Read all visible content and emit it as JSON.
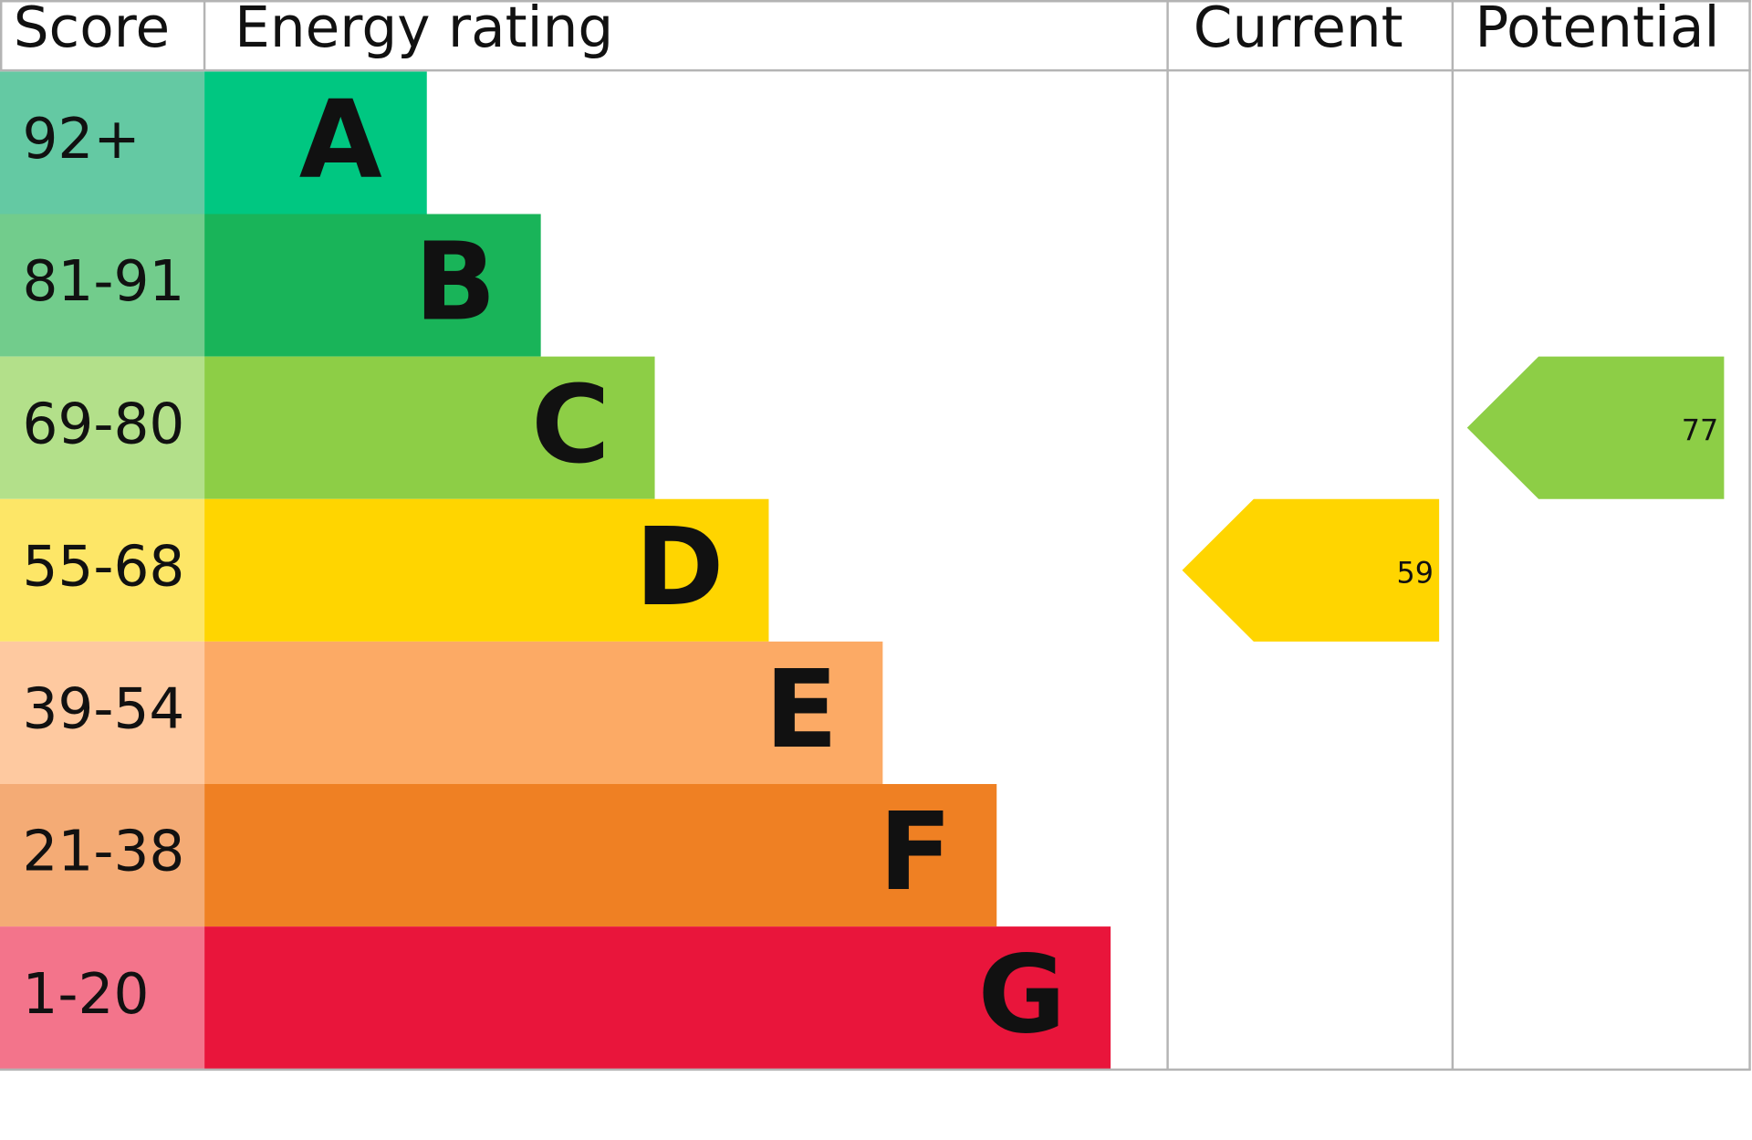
{
  "header": {
    "score": "Score",
    "rating": "Energy rating",
    "current": "Current",
    "potential": "Potential"
  },
  "bands": [
    {
      "score": "92+",
      "letter": "A",
      "score_color": "#64c9a3",
      "color": "#00c781"
    },
    {
      "score": "81-91",
      "letter": "B",
      "score_color": "#72cc8c",
      "color": "#19b459"
    },
    {
      "score": "69-80",
      "letter": "C",
      "score_color": "#b3e08a",
      "color": "#8dce46"
    },
    {
      "score": "55-68",
      "letter": "D",
      "score_color": "#fde667",
      "color": "#ffd500"
    },
    {
      "score": "39-54",
      "letter": "E",
      "score_color": "#fec9a0",
      "color": "#fcaa65"
    },
    {
      "score": "21-38",
      "letter": "F",
      "score_color": "#f4ab75",
      "color": "#ef8023"
    },
    {
      "score": "1-20",
      "letter": "G",
      "score_color": "#f3748b",
      "color": "#e9153b"
    }
  ],
  "current": {
    "value": 59
  },
  "potential": {
    "value": 77
  }
}
